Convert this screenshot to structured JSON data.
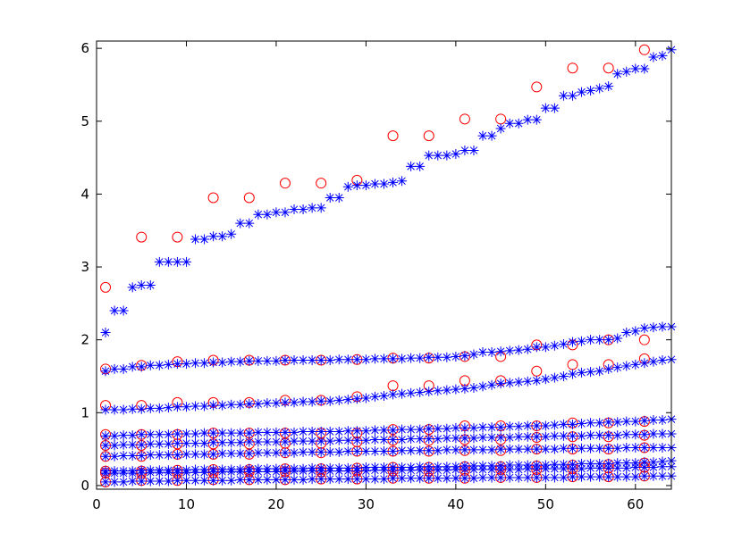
{
  "chart_data": {
    "type": "scatter",
    "title": "",
    "xlabel": "",
    "ylabel": "",
    "xlim": [
      0,
      64
    ],
    "ylim": [
      -0.05,
      6.1
    ],
    "xticks": [
      0,
      10,
      20,
      30,
      40,
      50,
      60
    ],
    "yticks": [
      0,
      1,
      2,
      3,
      4,
      5,
      6
    ],
    "grid": false,
    "legend": "none",
    "colors": {
      "stars": "#0000ff",
      "circles": "#ff0000",
      "axes": "#000000"
    },
    "star_series": [
      {
        "values": [
          2.1,
          2.4,
          2.4,
          2.72,
          2.75,
          2.75,
          3.07,
          3.07,
          3.07,
          3.07,
          3.38,
          3.38,
          3.42,
          3.42,
          3.45,
          3.6,
          3.6,
          3.72,
          3.72,
          3.75,
          3.75,
          3.79,
          3.79,
          3.81,
          3.81,
          3.95,
          3.95,
          4.1,
          4.12,
          4.12,
          4.14,
          4.14,
          4.16,
          4.18,
          4.38,
          4.38,
          4.53,
          4.53,
          4.53,
          4.55,
          4.6,
          4.6,
          4.8,
          4.8,
          4.9,
          4.97,
          4.97,
          5.02,
          5.02,
          5.18,
          5.18,
          5.35,
          5.35,
          5.4,
          5.42,
          5.45,
          5.48,
          5.65,
          5.68,
          5.72,
          5.72,
          5.88,
          5.9,
          5.98
        ]
      },
      {
        "values": [
          1.57,
          1.6,
          1.6,
          1.63,
          1.63,
          1.65,
          1.65,
          1.66,
          1.67,
          1.67,
          1.68,
          1.68,
          1.69,
          1.69,
          1.7,
          1.7,
          1.71,
          1.71,
          1.71,
          1.71,
          1.72,
          1.72,
          1.72,
          1.72,
          1.72,
          1.72,
          1.73,
          1.73,
          1.73,
          1.73,
          1.74,
          1.74,
          1.74,
          1.74,
          1.75,
          1.75,
          1.76,
          1.76,
          1.76,
          1.77,
          1.78,
          1.8,
          1.83,
          1.83,
          1.84,
          1.85,
          1.86,
          1.87,
          1.9,
          1.9,
          1.92,
          1.94,
          1.97,
          1.98,
          2.0,
          2.0,
          2.0,
          2.02,
          2.1,
          2.12,
          2.16,
          2.17,
          2.18,
          2.18
        ]
      },
      {
        "values": [
          1.04,
          1.04,
          1.04,
          1.05,
          1.05,
          1.06,
          1.06,
          1.07,
          1.08,
          1.08,
          1.09,
          1.09,
          1.1,
          1.1,
          1.11,
          1.11,
          1.12,
          1.12,
          1.13,
          1.13,
          1.14,
          1.14,
          1.15,
          1.15,
          1.16,
          1.16,
          1.17,
          1.18,
          1.19,
          1.2,
          1.22,
          1.23,
          1.25,
          1.26,
          1.27,
          1.28,
          1.29,
          1.3,
          1.31,
          1.32,
          1.33,
          1.34,
          1.36,
          1.38,
          1.4,
          1.41,
          1.42,
          1.43,
          1.44,
          1.46,
          1.48,
          1.5,
          1.53,
          1.55,
          1.56,
          1.57,
          1.6,
          1.62,
          1.64,
          1.66,
          1.68,
          1.7,
          1.72,
          1.73
        ]
      },
      {
        "values": [
          0.68,
          0.68,
          0.69,
          0.69,
          0.7,
          0.7,
          0.7,
          0.7,
          0.71,
          0.71,
          0.71,
          0.72,
          0.72,
          0.72,
          0.72,
          0.72,
          0.72,
          0.73,
          0.73,
          0.73,
          0.73,
          0.73,
          0.74,
          0.74,
          0.74,
          0.74,
          0.74,
          0.75,
          0.75,
          0.75,
          0.76,
          0.76,
          0.76,
          0.77,
          0.77,
          0.77,
          0.78,
          0.78,
          0.78,
          0.79,
          0.79,
          0.79,
          0.8,
          0.8,
          0.8,
          0.81,
          0.81,
          0.82,
          0.82,
          0.82,
          0.83,
          0.84,
          0.84,
          0.85,
          0.86,
          0.86,
          0.87,
          0.87,
          0.88,
          0.88,
          0.89,
          0.9,
          0.9,
          0.91
        ]
      },
      {
        "values": [
          0.55,
          0.55,
          0.56,
          0.56,
          0.56,
          0.57,
          0.57,
          0.57,
          0.58,
          0.58,
          0.58,
          0.58,
          0.59,
          0.59,
          0.59,
          0.59,
          0.6,
          0.6,
          0.6,
          0.6,
          0.6,
          0.61,
          0.61,
          0.61,
          0.61,
          0.61,
          0.62,
          0.62,
          0.62,
          0.62,
          0.63,
          0.63,
          0.63,
          0.63,
          0.64,
          0.64,
          0.64,
          0.64,
          0.65,
          0.65,
          0.65,
          0.65,
          0.66,
          0.66,
          0.66,
          0.66,
          0.67,
          0.67,
          0.67,
          0.67,
          0.68,
          0.68,
          0.68,
          0.68,
          0.69,
          0.69,
          0.69,
          0.69,
          0.7,
          0.7,
          0.7,
          0.71,
          0.71,
          0.71
        ]
      },
      {
        "values": [
          0.4,
          0.4,
          0.41,
          0.41,
          0.41,
          0.42,
          0.42,
          0.42,
          0.42,
          0.43,
          0.43,
          0.43,
          0.43,
          0.44,
          0.44,
          0.44,
          0.44,
          0.45,
          0.45,
          0.45,
          0.45,
          0.45,
          0.46,
          0.46,
          0.46,
          0.46,
          0.46,
          0.47,
          0.47,
          0.47,
          0.47,
          0.47,
          0.47,
          0.48,
          0.48,
          0.48,
          0.48,
          0.48,
          0.49,
          0.49,
          0.49,
          0.49,
          0.49,
          0.49,
          0.5,
          0.5,
          0.5,
          0.5,
          0.5,
          0.5,
          0.5,
          0.51,
          0.51,
          0.51,
          0.51,
          0.51,
          0.51,
          0.51,
          0.52,
          0.52,
          0.52,
          0.52,
          0.52,
          0.52
        ]
      },
      {
        "values": [
          0.2,
          0.2,
          0.2,
          0.2,
          0.21,
          0.21,
          0.21,
          0.21,
          0.21,
          0.21,
          0.22,
          0.22,
          0.22,
          0.22,
          0.22,
          0.22,
          0.23,
          0.23,
          0.23,
          0.23,
          0.23,
          0.23,
          0.23,
          0.24,
          0.24,
          0.24,
          0.24,
          0.24,
          0.24,
          0.25,
          0.25,
          0.25,
          0.25,
          0.25,
          0.25,
          0.26,
          0.26,
          0.26,
          0.26,
          0.26,
          0.27,
          0.27,
          0.27,
          0.27,
          0.27,
          0.28,
          0.28,
          0.28,
          0.28,
          0.28,
          0.29,
          0.29,
          0.29,
          0.3,
          0.3,
          0.3,
          0.3,
          0.31,
          0.31,
          0.31,
          0.32,
          0.32,
          0.33,
          0.34
        ]
      },
      {
        "values": [
          0.17,
          0.17,
          0.17,
          0.17,
          0.17,
          0.18,
          0.18,
          0.18,
          0.18,
          0.18,
          0.18,
          0.18,
          0.19,
          0.19,
          0.19,
          0.19,
          0.19,
          0.19,
          0.19,
          0.19,
          0.2,
          0.2,
          0.2,
          0.2,
          0.2,
          0.2,
          0.2,
          0.2,
          0.2,
          0.2,
          0.21,
          0.21,
          0.21,
          0.21,
          0.21,
          0.21,
          0.21,
          0.21,
          0.21,
          0.22,
          0.22,
          0.22,
          0.22,
          0.22,
          0.22,
          0.22,
          0.22,
          0.23,
          0.23,
          0.23,
          0.23,
          0.23,
          0.23,
          0.23,
          0.24,
          0.24,
          0.24,
          0.24,
          0.24,
          0.25,
          0.25,
          0.25,
          0.26,
          0.26
        ]
      },
      {
        "values": [
          0.05,
          0.05,
          0.05,
          0.06,
          0.06,
          0.06,
          0.06,
          0.06,
          0.07,
          0.07,
          0.07,
          0.07,
          0.07,
          0.07,
          0.07,
          0.08,
          0.08,
          0.08,
          0.08,
          0.08,
          0.08,
          0.08,
          0.08,
          0.09,
          0.09,
          0.09,
          0.09,
          0.09,
          0.09,
          0.09,
          0.09,
          0.09,
          0.1,
          0.1,
          0.1,
          0.1,
          0.1,
          0.1,
          0.1,
          0.1,
          0.1,
          0.1,
          0.11,
          0.11,
          0.11,
          0.11,
          0.11,
          0.11,
          0.11,
          0.11,
          0.11,
          0.11,
          0.12,
          0.12,
          0.12,
          0.12,
          0.12,
          0.12,
          0.12,
          0.12,
          0.13,
          0.13,
          0.13,
          0.13
        ]
      }
    ],
    "circle_x": [
      1,
      5,
      9,
      13,
      17,
      21,
      25,
      29,
      33,
      37,
      41,
      45,
      49,
      53,
      57,
      61
    ],
    "circle_series": [
      {
        "values": [
          2.72,
          3.41,
          3.41,
          3.95,
          3.95,
          4.15,
          4.15,
          4.19,
          4.8,
          4.8,
          5.03,
          5.03,
          5.47,
          5.73,
          5.73,
          5.98
        ]
      },
      {
        "values": [
          1.6,
          1.65,
          1.7,
          1.72,
          1.72,
          1.72,
          1.72,
          1.73,
          1.75,
          1.75,
          1.77,
          1.77,
          1.93,
          1.93,
          2.0,
          2.0
        ]
      },
      {
        "values": [
          1.1,
          1.1,
          1.14,
          1.14,
          1.14,
          1.17,
          1.17,
          1.22,
          1.37,
          1.37,
          1.44,
          1.44,
          1.57,
          1.66,
          1.66,
          1.74
        ]
      },
      {
        "values": [
          0.7,
          0.7,
          0.7,
          0.72,
          0.72,
          0.72,
          0.72,
          0.72,
          0.77,
          0.77,
          0.82,
          0.82,
          0.82,
          0.86,
          0.86,
          0.88
        ]
      },
      {
        "values": [
          0.55,
          0.55,
          0.57,
          0.57,
          0.57,
          0.58,
          0.58,
          0.6,
          0.62,
          0.62,
          0.63,
          0.63,
          0.66,
          0.67,
          0.67,
          0.69
        ]
      },
      {
        "values": [
          0.4,
          0.4,
          0.43,
          0.43,
          0.43,
          0.45,
          0.45,
          0.47,
          0.47,
          0.47,
          0.48,
          0.48,
          0.5,
          0.5,
          0.5,
          0.52
        ]
      },
      {
        "values": [
          0.2,
          0.2,
          0.21,
          0.22,
          0.22,
          0.23,
          0.23,
          0.24,
          0.25,
          0.25,
          0.26,
          0.26,
          0.27,
          0.28,
          0.29,
          0.31
        ]
      },
      {
        "values": [
          0.17,
          0.17,
          0.17,
          0.18,
          0.19,
          0.19,
          0.19,
          0.2,
          0.2,
          0.2,
          0.21,
          0.22,
          0.22,
          0.23,
          0.24,
          0.25
        ]
      },
      {
        "values": [
          0.05,
          0.07,
          0.07,
          0.08,
          0.08,
          0.08,
          0.09,
          0.09,
          0.1,
          0.1,
          0.1,
          0.11,
          0.11,
          0.12,
          0.12,
          0.13
        ]
      }
    ]
  }
}
